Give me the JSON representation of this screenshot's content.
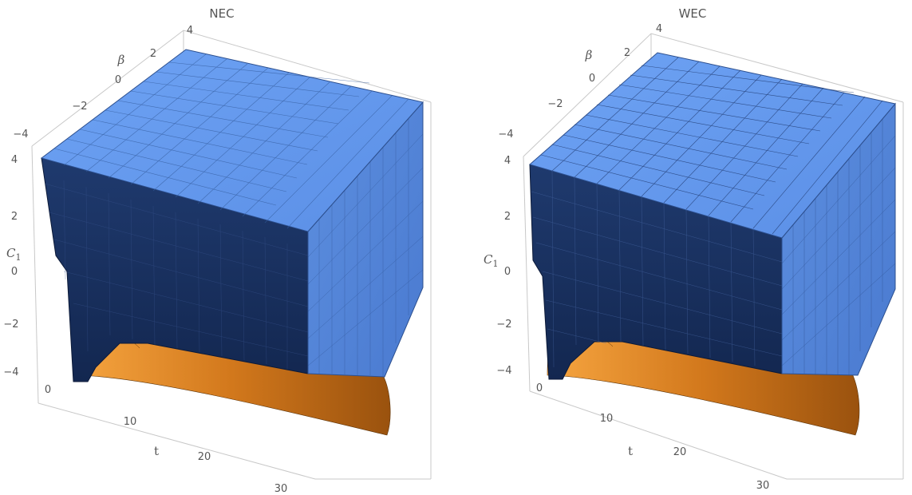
{
  "chart_data": [
    {
      "type": "surface3d",
      "title": "NEC",
      "axes": {
        "x": {
          "label": "t",
          "range": [
            0,
            30
          ],
          "ticks": [
            "0",
            "10",
            "20",
            "30"
          ]
        },
        "y": {
          "label": "β",
          "range": [
            -4,
            4
          ],
          "ticks": [
            "−4",
            "−2",
            "0",
            "2",
            "4"
          ]
        },
        "z": {
          "label": "C",
          "label_sub": "1",
          "range": [
            -4,
            4
          ],
          "ticks": [
            "−4",
            "−2",
            "0",
            "2",
            "4"
          ]
        }
      },
      "colors": {
        "satisfied": "#6a9ef0",
        "boundary": "#f39a30"
      },
      "boundary_C1": {
        "t": [
          0,
          0.5,
          1,
          2,
          4,
          7,
          10,
          15,
          20,
          25,
          30
        ],
        "C1": [
          -4.0,
          -3.3,
          -2.6,
          -2.1,
          -1.9,
          -2.0,
          -2.2,
          -2.6,
          -3.0,
          -3.3,
          -3.6
        ]
      }
    },
    {
      "type": "surface3d",
      "title": "WEC",
      "axes": {
        "x": {
          "label": "t",
          "range": [
            0,
            30
          ],
          "ticks": [
            "0",
            "10",
            "20",
            "30"
          ]
        },
        "y": {
          "label": "β",
          "range": [
            -4,
            4
          ],
          "ticks": [
            "−4",
            "−2",
            "0",
            "2",
            "4"
          ]
        },
        "z": {
          "label": "C",
          "label_sub": "1",
          "range": [
            -4,
            4
          ],
          "ticks": [
            "−4",
            "−2",
            "0",
            "2",
            "4"
          ]
        }
      },
      "colors": {
        "satisfied": "#6a9ef0",
        "boundary": "#f39a30"
      },
      "boundary_C1": {
        "t": [
          0,
          0.5,
          1,
          2,
          4,
          7,
          10,
          15,
          20,
          25,
          30
        ],
        "C1": [
          -4.0,
          -3.2,
          -2.5,
          -2.0,
          -1.8,
          -1.9,
          -2.1,
          -2.5,
          -2.9,
          -3.2,
          -3.5
        ]
      }
    }
  ]
}
